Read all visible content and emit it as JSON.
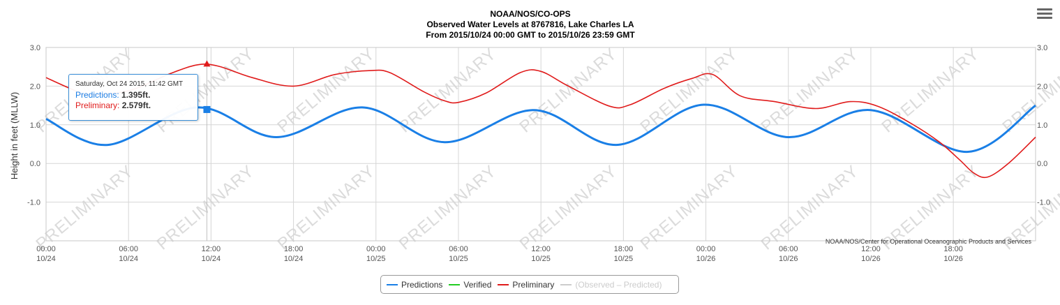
{
  "chart_data": {
    "type": "line",
    "title": [
      "NOAA/NOS/CO-OPS",
      "Observed Water Levels at 8767816, Lake Charles LA",
      "From 2015/10/24 00:00 GMT to 2015/10/26 23:59 GMT"
    ],
    "ylabel": "Height in feet (MLLW)",
    "ylim": [
      -2.0,
      3.0
    ],
    "xlim": [
      "2015-10-24 00:00",
      "2015-10-26 23:59"
    ],
    "y_ticks": [
      "3.0",
      "2.0",
      "1.0",
      "0.0",
      "-1.0"
    ],
    "x_ticks": [
      {
        "time": "00:00",
        "date": "10/24"
      },
      {
        "time": "06:00",
        "date": "10/24"
      },
      {
        "time": "12:00",
        "date": "10/24"
      },
      {
        "time": "18:00",
        "date": "10/24"
      },
      {
        "time": "00:00",
        "date": "10/25"
      },
      {
        "time": "06:00",
        "date": "10/25"
      },
      {
        "time": "12:00",
        "date": "10/25"
      },
      {
        "time": "18:00",
        "date": "10/25"
      },
      {
        "time": "00:00",
        "date": "10/26"
      },
      {
        "time": "06:00",
        "date": "10/26"
      },
      {
        "time": "12:00",
        "date": "10/26"
      },
      {
        "time": "18:00",
        "date": "10/26"
      }
    ],
    "grid": true,
    "legend_position": "bottom-center",
    "series": [
      {
        "name": "Predictions",
        "color": "#1a7fe6",
        "points": [
          [
            "2015-10-24 00:00",
            1.15
          ],
          [
            "2015-10-24 04:30",
            0.48
          ],
          [
            "2015-10-24 11:00",
            1.45
          ],
          [
            "2015-10-24 16:45",
            0.68
          ],
          [
            "2015-10-24 23:00",
            1.45
          ],
          [
            "2015-10-25 05:00",
            0.55
          ],
          [
            "2015-10-25 11:30",
            1.38
          ],
          [
            "2015-10-25 17:30",
            0.48
          ],
          [
            "2015-10-25 23:50",
            1.52
          ],
          [
            "2015-10-26 06:00",
            0.68
          ],
          [
            "2015-10-26 12:00",
            1.38
          ],
          [
            "2015-10-26 19:00",
            0.3
          ],
          [
            "2015-10-26 23:59",
            1.5
          ]
        ]
      },
      {
        "name": "Verified",
        "color": "#22cc22",
        "points": []
      },
      {
        "name": "Preliminary",
        "color": "#e01b1b",
        "points": [
          [
            "2015-10-24 00:00",
            2.22
          ],
          [
            "2015-10-24 02:00",
            1.9
          ],
          [
            "2015-10-24 03:00",
            1.78
          ],
          [
            "2015-10-24 06:00",
            1.88
          ],
          [
            "2015-10-24 09:00",
            2.32
          ],
          [
            "2015-10-24 11:00",
            2.55
          ],
          [
            "2015-10-24 12:30",
            2.52
          ],
          [
            "2015-10-24 15:00",
            2.22
          ],
          [
            "2015-10-24 18:00",
            2.0
          ],
          [
            "2015-10-24 21:00",
            2.3
          ],
          [
            "2015-10-24 23:30",
            2.4
          ],
          [
            "2015-10-25 01:00",
            2.35
          ],
          [
            "2015-10-25 03:30",
            1.85
          ],
          [
            "2015-10-25 05:00",
            1.62
          ],
          [
            "2015-10-25 06:00",
            1.58
          ],
          [
            "2015-10-25 08:00",
            1.82
          ],
          [
            "2015-10-25 10:30",
            2.35
          ],
          [
            "2015-10-25 12:00",
            2.38
          ],
          [
            "2015-10-25 14:00",
            2.0
          ],
          [
            "2015-10-25 17:00",
            1.48
          ],
          [
            "2015-10-25 18:30",
            1.52
          ],
          [
            "2015-10-25 21:00",
            1.95
          ],
          [
            "2015-10-25 23:00",
            2.2
          ],
          [
            "2015-10-26 00:30",
            2.3
          ],
          [
            "2015-10-26 02:30",
            1.75
          ],
          [
            "2015-10-26 05:00",
            1.6
          ],
          [
            "2015-10-26 08:00",
            1.42
          ],
          [
            "2015-10-26 10:30",
            1.6
          ],
          [
            "2015-10-26 12:30",
            1.48
          ],
          [
            "2015-10-26 15:00",
            1.02
          ],
          [
            "2015-10-26 17:00",
            0.55
          ],
          [
            "2015-10-26 18:30",
            0.08
          ],
          [
            "2015-10-26 19:30",
            -0.25
          ],
          [
            "2015-10-26 20:30",
            -0.35
          ],
          [
            "2015-10-26 22:00",
            0.0
          ],
          [
            "2015-10-26 23:59",
            0.68
          ]
        ]
      },
      {
        "name": "(Observed – Predicted)",
        "color": "#cccccc",
        "points": []
      }
    ],
    "annotations": {
      "watermark": "PRELIMINARY",
      "credit": "NOAA/NOS/Center for Operational Oceanographic Products and Services",
      "marker_time": "2015-10-24 11:42",
      "marker_values": {
        "Predictions": 1.395,
        "Preliminary": 2.579
      }
    }
  },
  "tooltip": {
    "time": "Saturday, Oct 24 2015, 11:42 GMT",
    "pred_label": "Predictions:",
    "pred_value": "1.395ft.",
    "prel_label": "Preliminary:",
    "prel_value": "2.579ft."
  },
  "legend": [
    {
      "label": "Predictions",
      "color": "#1a7fe6",
      "enabled": true
    },
    {
      "label": "Verified",
      "color": "#22cc22",
      "enabled": true
    },
    {
      "label": "Preliminary",
      "color": "#e01b1b",
      "enabled": true
    },
    {
      "label": "(Observed – Predicted)",
      "color": "#cccccc",
      "enabled": false
    }
  ],
  "menu_icon": "hamburger-icon"
}
